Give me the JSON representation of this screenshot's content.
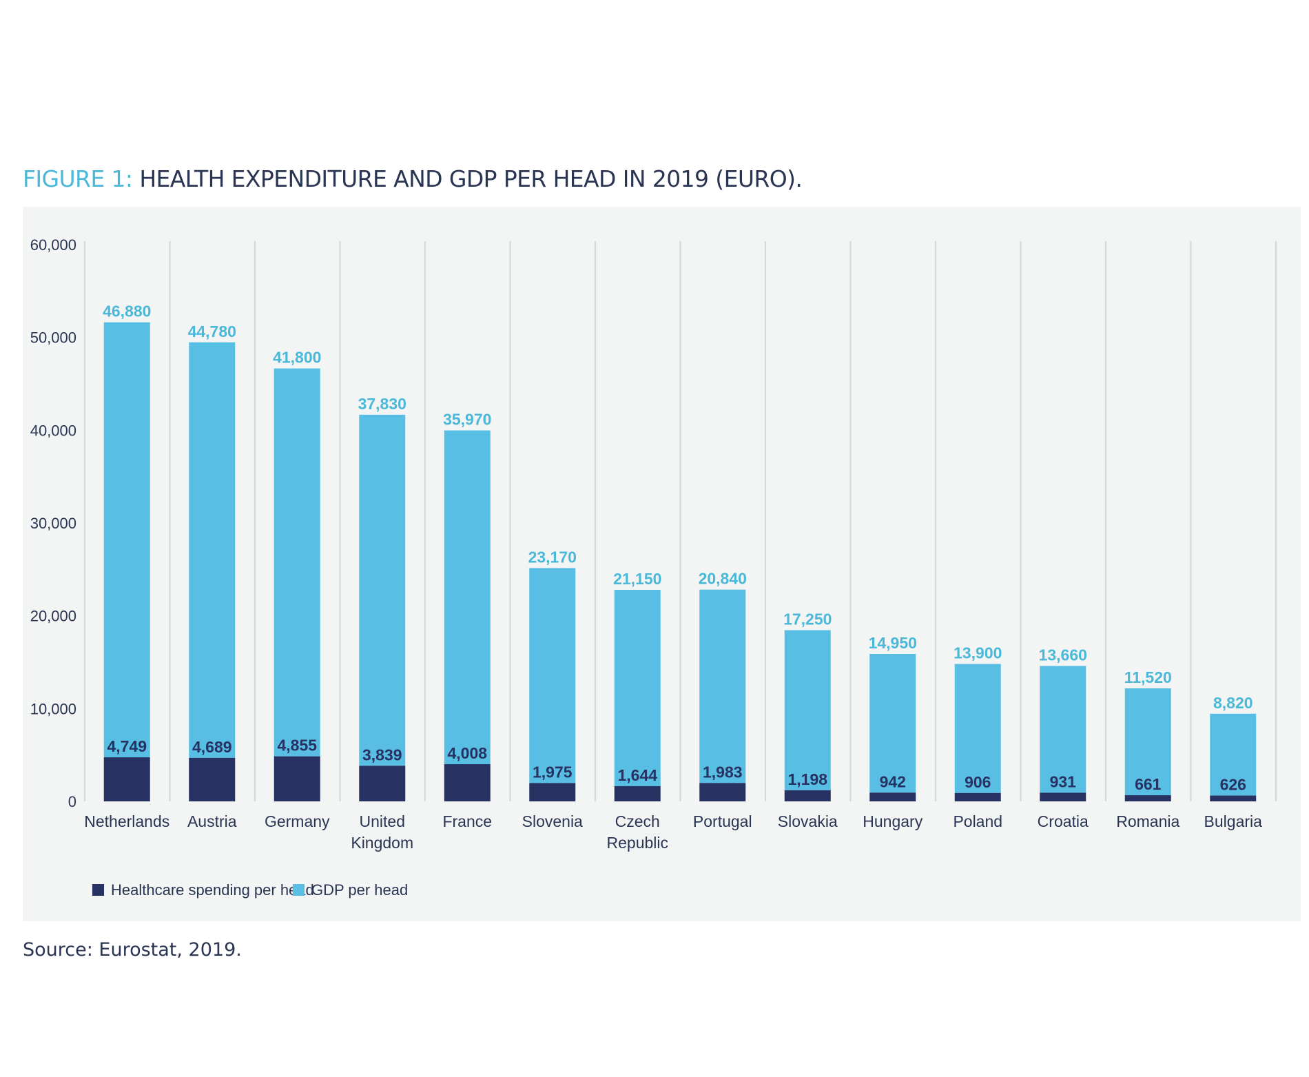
{
  "figure": {
    "label": "FIGURE 1:",
    "title": " HEALTH EXPENDITURE AND GDP PER HEAD IN 2019 (EURO).",
    "source": "Source: Eurostat, 2019."
  },
  "colors": {
    "title_accent": "#4ab8d8",
    "title_text": "#2a3553",
    "panel_bg": "#f3f4f4",
    "gdp": "#58bee3",
    "health": "#283262",
    "gdp_label": "#4ab8d8",
    "health_label": "#283262"
  },
  "chart_data": {
    "type": "bar",
    "stacked": true,
    "title": "FIGURE 1: HEALTH EXPENDITURE AND GDP PER HEAD IN 2019 (EURO).",
    "xlabel": "",
    "ylabel": "",
    "ylim": [
      0,
      60000
    ],
    "yticks": [
      0,
      10000,
      20000,
      30000,
      40000,
      50000,
      60000
    ],
    "ytick_labels": [
      "0",
      "10,000",
      "20,000",
      "30,000",
      "40,000",
      "50,000",
      "60,000"
    ],
    "grid": "vertical separators",
    "legend_position": "bottom-left",
    "categories": [
      [
        "Netherlands"
      ],
      [
        "Austria"
      ],
      [
        "Germany"
      ],
      [
        "United",
        "Kingdom"
      ],
      [
        "France"
      ],
      [
        "Slovenia"
      ],
      [
        "Czech",
        "Republic"
      ],
      [
        "Portugal"
      ],
      [
        "Slovakia"
      ],
      [
        "Hungary"
      ],
      [
        "Poland"
      ],
      [
        "Croatia"
      ],
      [
        "Romania"
      ],
      [
        "Bulgaria"
      ]
    ],
    "series": [
      {
        "name": "Healthcare spending per head",
        "color": "#283262",
        "values": [
          4749,
          4689,
          4855,
          3839,
          4008,
          1975,
          1644,
          1983,
          1198,
          942,
          906,
          931,
          661,
          626
        ],
        "labels": [
          "4,749",
          "4,689",
          "4,855",
          "3,839",
          "4,008",
          "1,975",
          "1,644",
          "1,983",
          "1,198",
          "942",
          "906",
          "931",
          "661",
          "626"
        ]
      },
      {
        "name": "GDP per head",
        "color": "#58bee3",
        "values": [
          46880,
          44780,
          41800,
          37830,
          35970,
          23170,
          21150,
          20840,
          17250,
          14950,
          13900,
          13660,
          11520,
          8820
        ],
        "labels": [
          "46,880",
          "44,780",
          "41,800",
          "37,830",
          "35,970",
          "23,170",
          "21,150",
          "20,840",
          "17,250",
          "14,950",
          "13,900",
          "13,660",
          "11,520",
          "8,820"
        ]
      }
    ]
  }
}
